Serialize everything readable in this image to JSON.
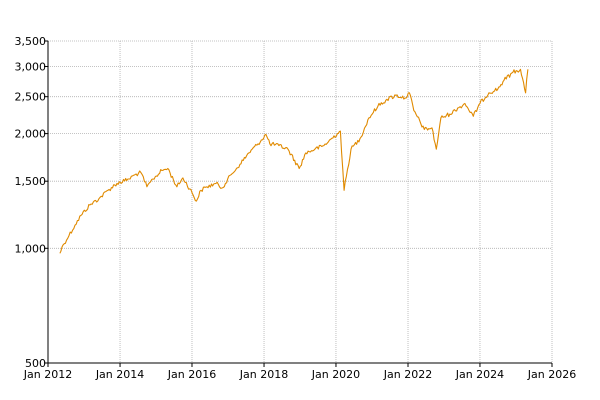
{
  "chart_data": {
    "type": "line",
    "title": "",
    "xlabel": "",
    "ylabel": "",
    "y_scale": "log",
    "xlim": [
      "2012-01-01",
      "2026-01-01"
    ],
    "ylim": [
      500,
      3500
    ],
    "grid": true,
    "x_ticks": [
      "Jan 2012",
      "Jan 2014",
      "Jan 2016",
      "Jan 2018",
      "Jan 2020",
      "Jan 2022",
      "Jan 2024",
      "Jan 2026"
    ],
    "x_tick_values": [
      "2012-01-01",
      "2014-01-01",
      "2016-01-01",
      "2018-01-01",
      "2020-01-01",
      "2022-01-01",
      "2024-01-01",
      "2026-01-01"
    ],
    "y_ticks": [
      "500",
      "1,000",
      "1,500",
      "2,000",
      "2,500",
      "3,000",
      "3,500"
    ],
    "y_tick_values": [
      500,
      1000,
      1500,
      2000,
      2500,
      3000,
      3500
    ],
    "series": [
      {
        "color": "#e08a00",
        "x": [
          "2012-05-01",
          "2012-06-01",
          "2012-08-01",
          "2012-10-01",
          "2012-12-01",
          "2013-03-01",
          "2013-06-01",
          "2013-09-01",
          "2013-12-01",
          "2014-04-01",
          "2014-06-01",
          "2014-08-01",
          "2014-10-01",
          "2014-12-01",
          "2015-03-01",
          "2015-05-01",
          "2015-08-01",
          "2015-10-01",
          "2016-01-01",
          "2016-02-15",
          "2016-04-01",
          "2016-06-01",
          "2016-09-01",
          "2016-11-01",
          "2017-02-01",
          "2017-05-01",
          "2017-08-01",
          "2017-11-01",
          "2018-01-20",
          "2018-03-01",
          "2018-06-01",
          "2018-09-01",
          "2018-12-24",
          "2019-03-01",
          "2019-06-01",
          "2019-09-01",
          "2020-01-15",
          "2020-02-15",
          "2020-03-23",
          "2020-06-01",
          "2020-09-01",
          "2020-12-01",
          "2021-03-01",
          "2021-06-01",
          "2021-09-01",
          "2021-12-01",
          "2022-01-15",
          "2022-03-01",
          "2022-06-15",
          "2022-09-01",
          "2022-10-15",
          "2022-12-01",
          "2023-03-01",
          "2023-06-01",
          "2023-08-01",
          "2023-10-25",
          "2024-01-01",
          "2024-04-01",
          "2024-07-01",
          "2024-09-01",
          "2024-12-01",
          "2025-02-15",
          "2025-04-08",
          "2025-05-01"
        ],
        "y": [
          970,
          1020,
          1080,
          1150,
          1220,
          1300,
          1350,
          1420,
          1480,
          1520,
          1560,
          1580,
          1450,
          1520,
          1600,
          1620,
          1450,
          1530,
          1400,
          1330,
          1420,
          1450,
          1480,
          1440,
          1560,
          1660,
          1780,
          1880,
          1990,
          1880,
          1860,
          1820,
          1620,
          1780,
          1820,
          1860,
          2000,
          2030,
          1420,
          1820,
          1940,
          2200,
          2360,
          2460,
          2520,
          2480,
          2560,
          2300,
          2050,
          2070,
          1820,
          2200,
          2250,
          2340,
          2400,
          2220,
          2400,
          2560,
          2620,
          2760,
          2900,
          2950,
          2560,
          2950
        ]
      }
    ]
  }
}
